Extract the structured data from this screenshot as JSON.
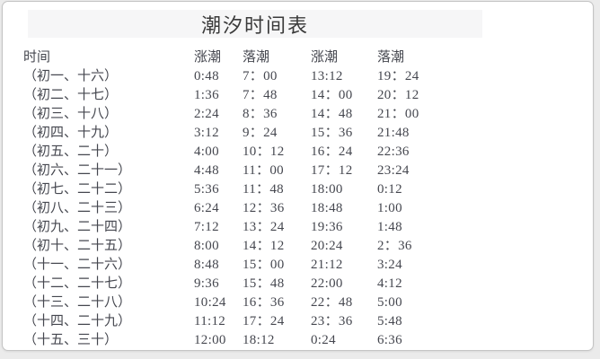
{
  "title": "潮汐时间表",
  "table": {
    "headers": [
      "时间",
      "涨潮",
      "落潮",
      "涨潮",
      "落潮"
    ],
    "rows": [
      {
        "label": "（初一、十六）",
        "times": [
          "0:48",
          "7：00",
          "13:12",
          "19：24"
        ]
      },
      {
        "label": "（初二、十七）",
        "times": [
          "1:36",
          "7：48",
          "14：00",
          "20：12"
        ]
      },
      {
        "label": "（初三、十八）",
        "times": [
          "2:24",
          "8：36",
          "14：48",
          "21：00"
        ]
      },
      {
        "label": "（初四、十九）",
        "times": [
          "3:12",
          "9：24",
          "15：36",
          "21:48"
        ]
      },
      {
        "label": "（初五、二十）",
        "times": [
          "4:00",
          "10：12",
          "16：24",
          "22:36"
        ]
      },
      {
        "label": "（初六、二十一）",
        "times": [
          "4:48",
          "11：00",
          "17：12",
          "23:24"
        ]
      },
      {
        "label": "（初七、二十二）",
        "times": [
          "5:36",
          "11：48",
          "18:00",
          "0:12"
        ]
      },
      {
        "label": "（初八、二十三）",
        "times": [
          "6:24",
          "12：36",
          "18:48",
          "1:00"
        ]
      },
      {
        "label": "（初九、二十四）",
        "times": [
          "7:12",
          "13：24",
          "19:36",
          "1:48"
        ]
      },
      {
        "label": "（初十、二十五）",
        "times": [
          "8:00",
          "14：12",
          "20:24",
          "2：36"
        ]
      },
      {
        "label": "（十一、二十六）",
        "times": [
          "8:48",
          "15：00",
          "21:12",
          "3:24"
        ]
      },
      {
        "label": "（十二、二十七）",
        "times": [
          "9:36",
          "15：48",
          "22:00",
          "4:12"
        ]
      },
      {
        "label": "（十三、二十八）",
        "times": [
          "10:24",
          "16：36",
          "22：48",
          "5:00"
        ]
      },
      {
        "label": "（十四、二十九）",
        "times": [
          "11:12",
          "17：24",
          "23：36",
          "5:48"
        ]
      },
      {
        "label": "（十五、三十）",
        "times": [
          "12:00",
          "18:12",
          "0:24",
          "6:36"
        ]
      }
    ]
  },
  "colors": {
    "card_border": "#c4c4c4",
    "title_band_bg": "#f6f6f7",
    "title_text": "#3b3b3b",
    "table_text": "#45474f",
    "outside_bg": "#ebebeb"
  }
}
